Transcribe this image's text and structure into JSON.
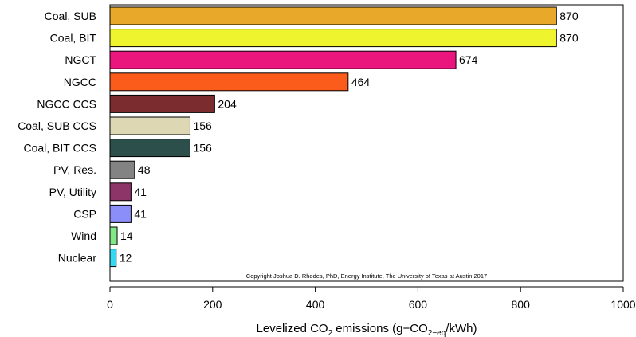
{
  "chart_data": {
    "type": "bar",
    "orientation": "horizontal",
    "categories": [
      "Coal, SUB",
      "Coal, BIT",
      "NGCT",
      "NGCC",
      "NGCC CCS",
      "Coal, SUB CCS",
      "Coal, BIT CCS",
      "PV, Res.",
      "PV, Utility",
      "CSP",
      "Wind",
      "Nuclear"
    ],
    "values": [
      870,
      870,
      674,
      464,
      204,
      156,
      156,
      48,
      41,
      41,
      14,
      12
    ],
    "data_labels": [
      "870",
      "870",
      "674",
      "464",
      "204",
      "156",
      "156",
      "48",
      "41",
      "41",
      "14",
      "12"
    ],
    "colors": [
      "#e8a82a",
      "#eef52e",
      "#ea157d",
      "#fb5b1b",
      "#7a2c2e",
      "#ddd7b4",
      "#2d4f4c",
      "#838383",
      "#8d3568",
      "#8b8df8",
      "#82e786",
      "#35d8f1"
    ],
    "bar_outline": "#000000",
    "xlim": [
      0,
      1000
    ],
    "x_ticks": [
      0,
      200,
      400,
      600,
      800,
      1000
    ],
    "x_tick_labels": [
      "0",
      "200",
      "400",
      "600",
      "800",
      "1000"
    ],
    "xlabel": {
      "prefix": "Levelized CO",
      "sub1": "2",
      "middle": " emissions (g−CO",
      "sub2": "2−eq",
      "suffix": "/kWh)"
    },
    "annotation": "Copyright Joshua D. Rhodes, PhD, Energy Institute, The University of Texas at Austin 2017",
    "grid": false,
    "legend": "none"
  }
}
